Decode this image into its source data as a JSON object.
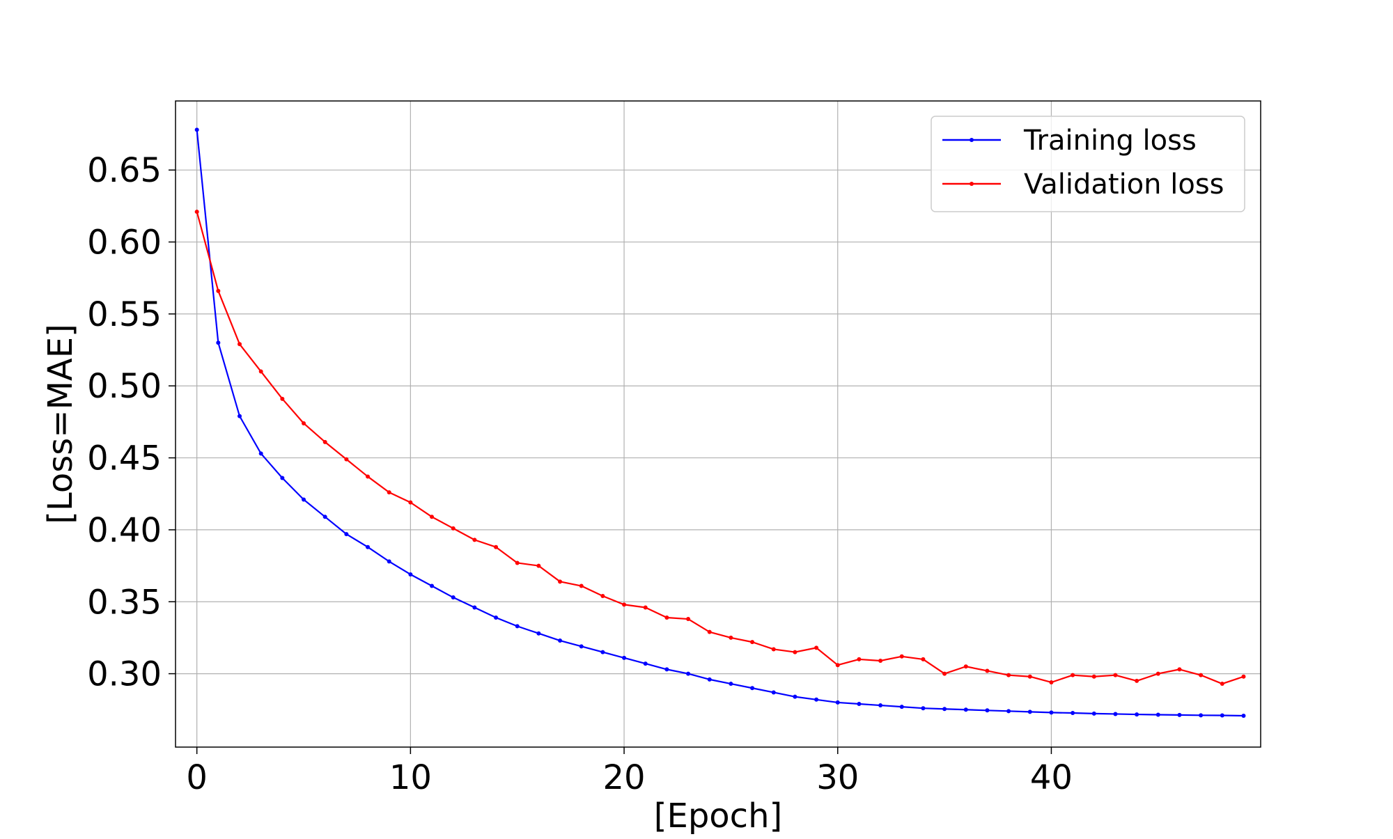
{
  "colors": {
    "training": "#0000ff",
    "validation": "#ff0000",
    "grid": "#b0b0b0",
    "axes": "#000000",
    "legend_border": "#cccccc"
  },
  "chart_data": {
    "type": "line",
    "title": "",
    "xlabel": "[Epoch]",
    "ylabel": "[Loss=MAE]",
    "xlim": [
      -1,
      49.8
    ],
    "ylim": [
      0.249,
      0.698
    ],
    "xticks": [
      0,
      10,
      20,
      30,
      40
    ],
    "xtick_labels": [
      "0",
      "10",
      "20",
      "30",
      "40"
    ],
    "yticks": [
      0.3,
      0.35,
      0.4,
      0.45,
      0.5,
      0.55,
      0.6,
      0.65
    ],
    "ytick_labels": [
      "0.30",
      "0.35",
      "0.40",
      "0.45",
      "0.50",
      "0.55",
      "0.60",
      "0.65"
    ],
    "grid": true,
    "legend_position": "top-right",
    "markers": "small dots",
    "x": [
      0,
      1,
      2,
      3,
      4,
      5,
      6,
      7,
      8,
      9,
      10,
      11,
      12,
      13,
      14,
      15,
      16,
      17,
      18,
      19,
      20,
      21,
      22,
      23,
      24,
      25,
      26,
      27,
      28,
      29,
      30,
      31,
      32,
      33,
      34,
      35,
      36,
      37,
      38,
      39,
      40,
      41,
      42,
      43,
      44,
      45,
      46,
      47,
      48,
      49
    ],
    "series": [
      {
        "name": "Training loss",
        "color": "#0000ff",
        "values": [
          0.678,
          0.53,
          0.479,
          0.453,
          0.436,
          0.421,
          0.409,
          0.397,
          0.388,
          0.378,
          0.369,
          0.361,
          0.353,
          0.346,
          0.339,
          0.333,
          0.328,
          0.323,
          0.319,
          0.315,
          0.311,
          0.307,
          0.303,
          0.3,
          0.296,
          0.293,
          0.29,
          0.287,
          0.284,
          0.282,
          0.28,
          0.279,
          0.278,
          0.277,
          0.276,
          0.2755,
          0.275,
          0.2745,
          0.274,
          0.2735,
          0.273,
          0.2727,
          0.2723,
          0.272,
          0.2717,
          0.2715,
          0.2713,
          0.2711,
          0.271,
          0.2708
        ]
      },
      {
        "name": "Validation loss",
        "color": "#ff0000",
        "values": [
          0.621,
          0.566,
          0.529,
          0.51,
          0.491,
          0.474,
          0.461,
          0.449,
          0.437,
          0.426,
          0.419,
          0.409,
          0.401,
          0.393,
          0.388,
          0.377,
          0.375,
          0.364,
          0.361,
          0.354,
          0.348,
          0.346,
          0.339,
          0.338,
          0.329,
          0.325,
          0.322,
          0.317,
          0.315,
          0.318,
          0.306,
          0.31,
          0.309,
          0.312,
          0.31,
          0.3,
          0.305,
          0.302,
          0.299,
          0.298,
          0.294,
          0.299,
          0.298,
          0.299,
          0.295,
          0.3,
          0.303,
          0.299,
          0.293,
          0.298
        ]
      }
    ]
  }
}
